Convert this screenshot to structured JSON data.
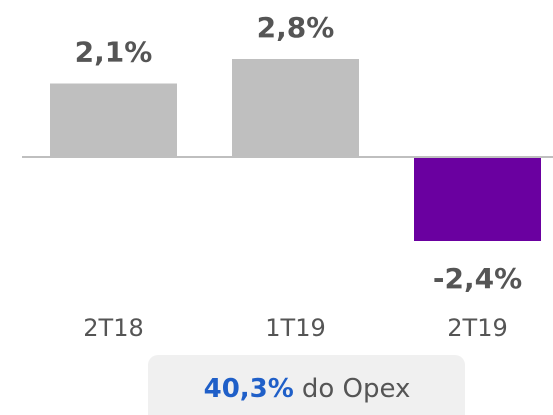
{
  "chart_data": {
    "type": "bar",
    "categories": [
      "2T18",
      "1T19",
      "2T19"
    ],
    "values": [
      2.1,
      2.8,
      -2.4
    ],
    "value_labels": [
      "2,1%",
      "2,8%",
      "-2,4%"
    ],
    "colors": [
      "#bfbfbf",
      "#bfbfbf",
      "#6a00a0"
    ],
    "annotation": {
      "value": "40,3%",
      "text": "do Opex"
    }
  }
}
